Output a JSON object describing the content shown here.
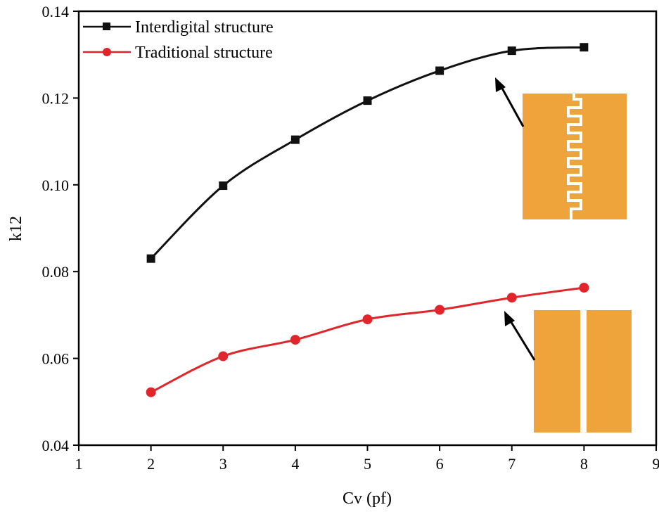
{
  "chart_data": {
    "type": "line",
    "xlabel": "Cv (pf)",
    "ylabel": "k12",
    "xlim": [
      1,
      9
    ],
    "ylim": [
      0.04,
      0.14
    ],
    "x_ticks": [
      "1",
      "2",
      "3",
      "4",
      "5",
      "6",
      "7",
      "8",
      "9"
    ],
    "y_ticks": [
      "0.04",
      "0.06",
      "0.08",
      "0.10",
      "0.12",
      "0.14"
    ],
    "x_tick_values": [
      1,
      2,
      3,
      4,
      5,
      6,
      7,
      8,
      9
    ],
    "y_tick_values": [
      0.04,
      0.06,
      0.08,
      0.1,
      0.12,
      0.14
    ],
    "grid": false,
    "legend_position": "top-left",
    "series": [
      {
        "name": "Interdigital structure",
        "color": "#111111",
        "marker": "square",
        "x": [
          2,
          3,
          4,
          5,
          6,
          7,
          8
        ],
        "y": [
          0.083,
          0.0998,
          0.1104,
          0.1194,
          0.1263,
          0.1309,
          0.1317
        ]
      },
      {
        "name": "Traditional structure",
        "color": "#e0262a",
        "marker": "circle",
        "x": [
          2,
          3,
          4,
          5,
          6,
          7,
          8
        ],
        "y": [
          0.0522,
          0.0605,
          0.0643,
          0.069,
          0.0712,
          0.074,
          0.0763
        ]
      }
    ],
    "insets": [
      {
        "name": "interdigital-structure-diagram",
        "color": "#eea33b",
        "points_to_series": 0
      },
      {
        "name": "traditional-structure-diagram",
        "color": "#eea33b",
        "points_to_series": 1
      }
    ]
  }
}
